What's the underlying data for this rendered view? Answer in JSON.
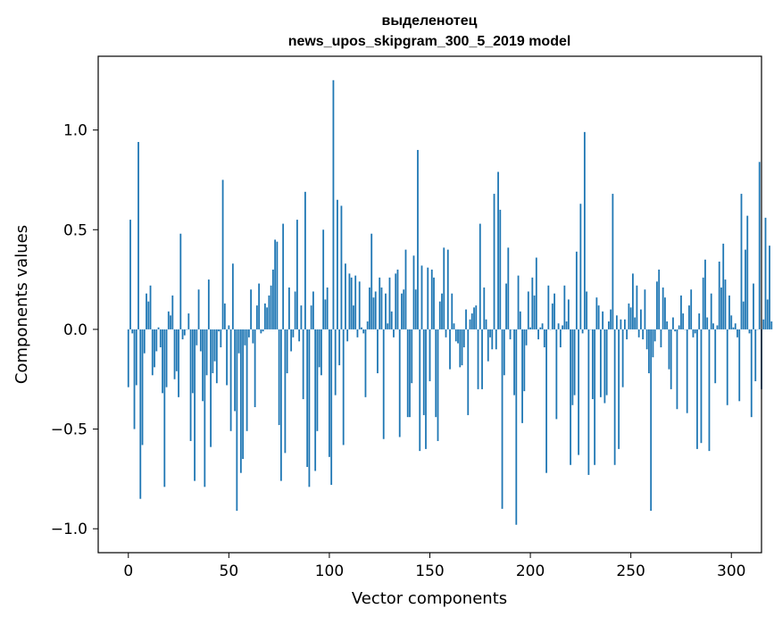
{
  "chart_data": {
    "type": "bar",
    "title_line1": "выделенотец",
    "title_line2": "news_upos_skipgram_300_5_2019 model",
    "xlabel": "Vector components",
    "ylabel": "Components values",
    "xlim": [
      -15,
      315
    ],
    "ylim": [
      -1.12,
      1.37
    ],
    "xticks": [
      0,
      50,
      100,
      150,
      200,
      250,
      300
    ],
    "xtick_labels": [
      "0",
      "50",
      "100",
      "150",
      "200",
      "250",
      "300"
    ],
    "yticks": [
      -1.0,
      -0.5,
      0.0,
      0.5,
      1.0
    ],
    "ytick_labels": [
      "−1.0",
      "−0.5",
      "0.0",
      "0.5",
      "1.0"
    ],
    "bar_color": "#1f77b4",
    "values": [
      -0.29,
      0.55,
      -0.02,
      -0.5,
      -0.28,
      0.94,
      -0.85,
      -0.58,
      -0.12,
      0.18,
      0.14,
      0.22,
      -0.23,
      -0.19,
      -0.11,
      0.01,
      -0.09,
      -0.32,
      -0.79,
      -0.29,
      0.09,
      0.07,
      0.17,
      -0.25,
      -0.21,
      -0.34,
      0.48,
      -0.05,
      -0.03,
      0.0,
      0.08,
      -0.56,
      -0.32,
      -0.76,
      -0.08,
      0.2,
      -0.11,
      -0.36,
      -0.79,
      -0.23,
      0.25,
      -0.59,
      -0.22,
      -0.16,
      -0.27,
      -0.01,
      -0.09,
      0.75,
      0.13,
      -0.28,
      0.02,
      -0.51,
      0.33,
      -0.41,
      -0.91,
      -0.12,
      -0.72,
      -0.65,
      -0.08,
      -0.51,
      -0.04,
      0.2,
      -0.07,
      -0.39,
      0.12,
      0.23,
      -0.02,
      -0.01,
      0.13,
      0.11,
      0.17,
      0.22,
      0.3,
      0.45,
      0.44,
      -0.48,
      -0.76,
      0.53,
      -0.62,
      -0.22,
      0.21,
      -0.11,
      -0.04,
      0.19,
      0.55,
      -0.06,
      0.12,
      -0.35,
      0.69,
      -0.69,
      -0.79,
      0.12,
      0.19,
      -0.71,
      -0.51,
      -0.19,
      -0.23,
      0.5,
      0.15,
      0.21,
      -0.64,
      -0.78,
      1.25,
      -0.33,
      0.65,
      -0.18,
      0.62,
      -0.58,
      0.33,
      -0.06,
      0.28,
      0.26,
      0.12,
      0.27,
      -0.04,
      0.24,
      0.01,
      -0.02,
      -0.34,
      0.04,
      0.21,
      0.48,
      0.16,
      0.19,
      -0.22,
      0.26,
      0.21,
      -0.55,
      0.18,
      0.03,
      0.26,
      0.09,
      -0.04,
      0.28,
      0.3,
      -0.54,
      0.18,
      0.2,
      0.4,
      -0.44,
      -0.44,
      -0.27,
      0.37,
      0.2,
      0.9,
      -0.61,
      0.32,
      -0.43,
      -0.6,
      0.31,
      -0.26,
      0.3,
      0.26,
      -0.44,
      -0.56,
      0.14,
      0.18,
      0.41,
      -0.04,
      0.4,
      -0.2,
      0.18,
      0.03,
      -0.06,
      -0.07,
      -0.19,
      -0.18,
      -0.09,
      0.1,
      -0.43,
      0.05,
      0.08,
      0.11,
      0.12,
      -0.3,
      0.53,
      -0.3,
      0.21,
      0.05,
      -0.16,
      -0.04,
      -0.1,
      0.68,
      -0.1,
      0.79,
      0.6,
      -0.9,
      -0.23,
      0.23,
      0.41,
      -0.05,
      0.0,
      -0.33,
      -0.98,
      0.27,
      0.09,
      -0.47,
      -0.31,
      -0.08,
      0.19,
      0.01,
      0.26,
      0.17,
      0.36,
      -0.05,
      0.01,
      0.03,
      -0.09,
      -0.72,
      0.22,
      0.0,
      0.13,
      0.18,
      -0.45,
      0.03,
      -0.09,
      0.02,
      0.22,
      0.04,
      0.15,
      -0.68,
      -0.38,
      -0.33,
      0.39,
      -0.63,
      0.63,
      -0.02,
      0.99,
      0.19,
      -0.73,
      0.0,
      -0.35,
      -0.68,
      0.16,
      0.12,
      -0.34,
      0.09,
      -0.37,
      -0.33,
      0.04,
      0.1,
      0.68,
      -0.68,
      0.07,
      -0.6,
      0.05,
      -0.29,
      0.05,
      -0.05,
      0.13,
      0.11,
      0.28,
      0.06,
      0.22,
      -0.04,
      0.1,
      -0.05,
      0.2,
      -0.1,
      -0.22,
      -0.91,
      -0.14,
      -0.06,
      0.24,
      0.3,
      -0.09,
      0.21,
      0.16,
      0.04,
      -0.2,
      -0.3,
      0.06,
      -0.01,
      -0.4,
      0.02,
      0.17,
      0.08,
      0.0,
      -0.42,
      0.12,
      0.2,
      -0.04,
      -0.02,
      -0.6,
      0.08,
      -0.57,
      0.26,
      0.35,
      0.06,
      -0.61,
      0.18,
      0.03,
      -0.27,
      0.02,
      0.34,
      0.21,
      0.43,
      0.25,
      -0.38,
      0.17,
      0.07,
      0.01,
      0.03,
      -0.04,
      -0.36,
      0.68,
      0.14,
      0.4,
      0.57,
      -0.02,
      -0.44,
      0.23,
      -0.26,
      0.0,
      0.84,
      -0.3,
      0.05,
      0.56,
      0.15,
      0.42,
      0.04
    ]
  }
}
